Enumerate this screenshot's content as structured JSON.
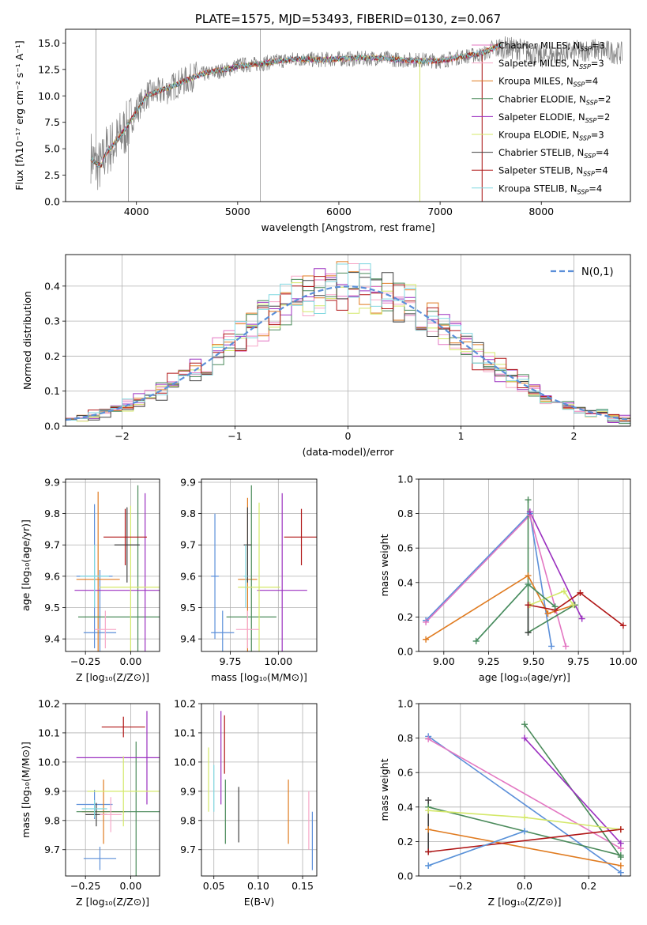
{
  "chart_data": [
    {
      "id": "spectrum",
      "type": "line",
      "title": "PLATE=1575, MJD=53493, FIBERID=0130, z=0.067",
      "xlabel": "wavelength [Angstrom, rest frame]",
      "ylabel": "Flux [fλ10⁻¹⁷ erg cm⁻² s⁻¹ A⁻¹]",
      "xlim": [
        3300,
        8880
      ],
      "ylim": [
        0,
        16.3
      ],
      "xticks": [
        4000,
        5000,
        6000,
        7000,
        8000
      ],
      "yticks": [
        0.0,
        2.5,
        5.0,
        7.5,
        10.0,
        12.5,
        15.0
      ],
      "grid": false,
      "legend": "right",
      "legend_entries": [
        {
          "label": "Chabrier MILES, N_SSP=3",
          "color": "#e377c2"
        },
        {
          "label": "Salpeter MILES, N_SSP=3",
          "color": "#f7a8c8"
        },
        {
          "label": "Kroupa MILES, N_SSP=4",
          "color": "#e07b20"
        },
        {
          "label": "Chabrier ELODIE, N_SSP=2",
          "color": "#4a8a5a"
        },
        {
          "label": "Salpeter ELODIE, N_SSP=2",
          "color": "#9b30c0"
        },
        {
          "label": "Kroupa ELODIE, N_SSP=3",
          "color": "#d4e86a"
        },
        {
          "label": "Chabrier STELIB, N_SSP=4",
          "color": "#404040"
        },
        {
          "label": "Salpeter STELIB, N_SSP=4",
          "color": "#b01515"
        },
        {
          "label": "Kroupa STELIB, N_SSP=4",
          "color": "#80d8e0"
        }
      ],
      "data_series": {
        "name": "data",
        "color": "#808080",
        "wavelength": [
          3550,
          3600,
          3650,
          3700,
          3800,
          3900,
          4000,
          4100,
          4200,
          4300,
          4400,
          4500,
          4600,
          4700,
          4800,
          4900,
          5000,
          5200,
          5400,
          5600,
          5800,
          6000,
          6200,
          6400,
          6600,
          6800,
          7000,
          7200,
          7400,
          7600,
          7800,
          8000,
          8200,
          8500,
          8800
        ],
        "flux": [
          4.3,
          3.5,
          3.3,
          4.8,
          5.6,
          6.9,
          8.6,
          10.1,
          10.3,
          10.5,
          11.1,
          11.5,
          12.0,
          12.1,
          12.3,
          12.5,
          12.9,
          13.0,
          13.3,
          13.5,
          13.4,
          13.5,
          13.5,
          13.6,
          13.4,
          13.4,
          13.3,
          13.7,
          13.9,
          14.6,
          14.4,
          13.7,
          14.0,
          14.4,
          14.0
        ]
      },
      "model_series": {
        "wavelength": [
          3550,
          3600,
          3650,
          3700,
          3800,
          3900,
          4000,
          4100,
          4200,
          4300,
          4400,
          4500,
          4600,
          4700,
          4800,
          4900,
          5000,
          5200,
          5400,
          5600,
          5800,
          6000,
          6200,
          6400,
          6600,
          6800,
          7000,
          7200,
          7400,
          7600
        ],
        "flux": [
          4.1,
          3.6,
          3.4,
          4.6,
          5.7,
          7.0,
          8.5,
          10.0,
          10.4,
          10.7,
          11.1,
          11.5,
          11.9,
          12.2,
          12.4,
          12.5,
          12.8,
          13.0,
          13.3,
          13.5,
          13.4,
          13.5,
          13.6,
          13.6,
          13.4,
          13.3,
          13.3,
          13.7,
          14.0,
          14.8
        ]
      }
    },
    {
      "id": "residuals",
      "type": "histogram",
      "xlabel": "(data-model)/error",
      "ylabel": "Normed distribution",
      "xlim": [
        -2.5,
        2.5
      ],
      "ylim": [
        0,
        0.49
      ],
      "xticks": [
        -2,
        -1,
        0,
        1,
        2
      ],
      "yticks": [
        0.0,
        0.1,
        0.2,
        0.3,
        0.4
      ],
      "grid": true,
      "legend": "top-right",
      "reference_curve": {
        "label": "N(0,1)",
        "color": "#5b8fd9",
        "sigma": 1
      },
      "bin_width": 0.1,
      "series": [
        {
          "name": "Chabrier MILES",
          "color": "#e377c2",
          "offset": 0
        },
        {
          "name": "Salpeter MILES",
          "color": "#f7a8c8",
          "offset": 1
        },
        {
          "name": "Kroupa MILES",
          "color": "#e07b20",
          "offset": 2
        },
        {
          "name": "Chabrier ELODIE",
          "color": "#4a8a5a",
          "offset": 3
        },
        {
          "name": "Salpeter ELODIE",
          "color": "#9b30c0",
          "offset": 4
        },
        {
          "name": "Kroupa ELODIE",
          "color": "#d4e86a",
          "offset": 5
        },
        {
          "name": "Chabrier STELIB",
          "color": "#404040",
          "offset": 6
        },
        {
          "name": "Salpeter STELIB",
          "color": "#b01515",
          "offset": 7
        },
        {
          "name": "Kroupa STELIB",
          "color": "#80d8e0",
          "offset": 8
        }
      ]
    },
    {
      "id": "age-vs-Z",
      "type": "scatter",
      "xlabel": "Z [log₁₀(Z/Z⊙)]",
      "ylabel": "age  [log₁₀(age/yr)]",
      "xlim": [
        -0.36,
        0.16
      ],
      "ylim": [
        9.36,
        9.91
      ],
      "xticks": [
        -0.25,
        0.0
      ],
      "yticks": [
        9.4,
        9.5,
        9.6,
        9.7,
        9.8,
        9.9
      ],
      "grid": true,
      "points": [
        {
          "x": -0.2,
          "y": 9.6,
          "xerr": 0.1,
          "yerr": 0.23,
          "color": "#5b8fd9"
        },
        {
          "x": -0.17,
          "y": 9.42,
          "xerr": 0.09,
          "yerr": 0.2,
          "color": "#5b8fd9"
        },
        {
          "x": -0.18,
          "y": 9.59,
          "xerr": 0.12,
          "yerr": 0.28,
          "color": "#e07b20"
        },
        {
          "x": 0.04,
          "y": 9.47,
          "xerr": 0.33,
          "yerr": 0.42,
          "color": "#4a8a5a"
        },
        {
          "x": 0.08,
          "y": 9.555,
          "xerr": 0.39,
          "yerr": 0.31,
          "color": "#9b30c0"
        },
        {
          "x": 0.0,
          "y": 9.565,
          "xerr": 0.17,
          "yerr": 0.26,
          "color": "#d4e86a"
        },
        {
          "x": -0.02,
          "y": 9.7,
          "xerr": 0.07,
          "yerr": 0.12,
          "color": "#404040"
        },
        {
          "x": -0.03,
          "y": 9.725,
          "xerr": 0.12,
          "yerr": 0.09,
          "color": "#b01515"
        },
        {
          "x": -0.14,
          "y": 9.43,
          "xerr": 0.06,
          "yerr": 0.06,
          "color": "#f7a8c8"
        },
        {
          "x": -0.2,
          "y": 9.6,
          "xerr": 0.08,
          "yerr": 0.1,
          "color": "#80d8e0"
        }
      ]
    },
    {
      "id": "age-vs-mass",
      "type": "scatter",
      "xlabel": "mass [log₁₀(M/M⊙)]",
      "ylabel": "",
      "xlim": [
        9.6,
        10.2
      ],
      "ylim": [
        9.36,
        9.91
      ],
      "xticks": [
        9.75,
        10.0
      ],
      "yticks": [
        9.4,
        9.5,
        9.6,
        9.7,
        9.8,
        9.9
      ],
      "grid": true,
      "points": [
        {
          "x": 9.67,
          "y": 9.6,
          "xerr": 0.02,
          "yerr": 0.2,
          "color": "#5b8fd9"
        },
        {
          "x": 9.71,
          "y": 9.42,
          "xerr": 0.06,
          "yerr": 0.07,
          "color": "#5b8fd9"
        },
        {
          "x": 9.84,
          "y": 9.59,
          "xerr": 0.05,
          "yerr": 0.26,
          "color": "#e07b20"
        },
        {
          "x": 9.86,
          "y": 9.47,
          "xerr": 0.13,
          "yerr": 0.42,
          "color": "#4a8a5a"
        },
        {
          "x": 10.02,
          "y": 9.555,
          "xerr": 0.13,
          "yerr": 0.31,
          "color": "#9b30c0"
        },
        {
          "x": 9.9,
          "y": 9.565,
          "xerr": 0.11,
          "yerr": 0.27,
          "color": "#d4e86a"
        },
        {
          "x": 9.84,
          "y": 9.7,
          "xerr": 0.02,
          "yerr": 0.12,
          "color": "#404040"
        },
        {
          "x": 10.12,
          "y": 9.725,
          "xerr": 0.09,
          "yerr": 0.09,
          "color": "#b01515"
        },
        {
          "x": 9.84,
          "y": 9.43,
          "xerr": 0.06,
          "yerr": 0.06,
          "color": "#f7a8c8"
        },
        {
          "x": 9.83,
          "y": 9.6,
          "xerr": 0.01,
          "yerr": 0.1,
          "color": "#80d8e0"
        }
      ]
    },
    {
      "id": "mass-weight-vs-age",
      "type": "line",
      "xlabel": "age  [log₁₀(age/yr)]",
      "ylabel": "mass weight",
      "xlim": [
        8.86,
        10.04
      ],
      "ylim": [
        0.0,
        1.0
      ],
      "xticks": [
        9.0,
        9.25,
        9.5,
        9.75,
        10.0
      ],
      "yticks": [
        0.0,
        0.2,
        0.4,
        0.6,
        0.8,
        1.0
      ],
      "grid": true,
      "series": [
        {
          "color": "#5b8fd9",
          "x": [
            8.9,
            9.48,
            9.6
          ],
          "y": [
            0.18,
            0.8,
            0.03
          ]
        },
        {
          "color": "#e377c2",
          "x": [
            8.9,
            9.48,
            9.68
          ],
          "y": [
            0.17,
            0.79,
            0.03
          ]
        },
        {
          "color": "#e07b20",
          "x": [
            8.9,
            9.47,
            9.58,
            9.73
          ],
          "y": [
            0.07,
            0.44,
            0.22,
            0.27
          ]
        },
        {
          "color": "#4a8a5a",
          "x": [
            9.47,
            9.47,
            9.73
          ],
          "y": [
            0.88,
            0.11,
            0.27
          ]
        },
        {
          "color": "#9b30c0",
          "x": [
            9.48,
            9.77
          ],
          "y": [
            0.81,
            0.19
          ]
        },
        {
          "color": "#d4e86a",
          "x": [
            9.48,
            9.67,
            9.72
          ],
          "y": [
            0.27,
            0.35,
            0.27
          ]
        },
        {
          "color": "#404040",
          "x": [
            9.47,
            9.47
          ],
          "y": [
            0.11,
            0.27
          ]
        },
        {
          "color": "#b01515",
          "x": [
            9.47,
            9.62,
            9.76,
            10.0
          ],
          "y": [
            0.27,
            0.24,
            0.34,
            0.15
          ]
        },
        {
          "color": "#80d8e0",
          "x": [
            9.18,
            9.47,
            9.62
          ],
          "y": [
            0.06,
            0.39,
            0.26
          ]
        },
        {
          "color": "#4a8a5a",
          "x": [
            9.18,
            9.47,
            9.62
          ],
          "y": [
            0.06,
            0.39,
            0.26
          ]
        }
      ]
    },
    {
      "id": "mass-vs-Z",
      "type": "scatter",
      "xlabel": "Z [log₁₀(Z/Z⊙)]",
      "ylabel": "mass [log₁₀(M/M⊙)]",
      "xlim": [
        -0.36,
        0.16
      ],
      "ylim": [
        9.61,
        10.2
      ],
      "xticks": [
        -0.25,
        0.0
      ],
      "yticks": [
        9.7,
        9.8,
        9.9,
        10.0,
        10.1,
        10.2
      ],
      "grid": true,
      "points": [
        {
          "x": -0.2,
          "y": 9.855,
          "xerr": 0.1,
          "yerr": 0.05,
          "color": "#5b8fd9"
        },
        {
          "x": -0.17,
          "y": 9.67,
          "xerr": 0.09,
          "yerr": 0.04,
          "color": "#5b8fd9"
        },
        {
          "x": -0.15,
          "y": 9.83,
          "xerr": 0.12,
          "yerr": 0.11,
          "color": "#e07b20"
        },
        {
          "x": 0.03,
          "y": 9.83,
          "xerr": 0.33,
          "yerr": 0.24,
          "color": "#4a8a5a"
        },
        {
          "x": 0.09,
          "y": 10.015,
          "xerr": 0.39,
          "yerr": 0.16,
          "color": "#9b30c0"
        },
        {
          "x": -0.04,
          "y": 9.9,
          "xerr": 0.2,
          "yerr": 0.12,
          "color": "#d4e86a"
        },
        {
          "x": -0.19,
          "y": 9.82,
          "xerr": 0.06,
          "yerr": 0.04,
          "color": "#404040"
        },
        {
          "x": -0.04,
          "y": 10.12,
          "xerr": 0.12,
          "yerr": 0.035,
          "color": "#b01515"
        },
        {
          "x": -0.11,
          "y": 9.82,
          "xerr": 0.06,
          "yerr": 0.06,
          "color": "#f7a8c8"
        },
        {
          "x": -0.2,
          "y": 9.84,
          "xerr": 0.07,
          "yerr": 0.03,
          "color": "#80d8e0"
        }
      ]
    },
    {
      "id": "mass-vs-ebv",
      "type": "scatter",
      "xlabel": "E(B-V)",
      "ylabel": "",
      "xlim": [
        0.036,
        0.166
      ],
      "ylim": [
        9.61,
        10.2
      ],
      "xticks": [
        0.05,
        0.1,
        0.15
      ],
      "yticks": [
        9.7,
        9.8,
        9.9,
        10.0,
        10.1,
        10.2
      ],
      "grid": true,
      "points": [
        {
          "x": 0.161,
          "y": 9.73,
          "xerr": 0.0,
          "yerr": 0.1,
          "color": "#5b8fd9"
        },
        {
          "x": 0.134,
          "y": 9.83,
          "xerr": 0.0,
          "yerr": 0.11,
          "color": "#e07b20"
        },
        {
          "x": 0.063,
          "y": 9.83,
          "xerr": 0.0,
          "yerr": 0.11,
          "color": "#4a8a5a"
        },
        {
          "x": 0.058,
          "y": 10.015,
          "xerr": 0.0,
          "yerr": 0.16,
          "color": "#9b30c0"
        },
        {
          "x": 0.044,
          "y": 9.94,
          "xerr": 0.0,
          "yerr": 0.11,
          "color": "#d4e86a"
        },
        {
          "x": 0.078,
          "y": 9.82,
          "xerr": 0.0,
          "yerr": 0.095,
          "color": "#404040"
        },
        {
          "x": 0.062,
          "y": 10.06,
          "xerr": 0.0,
          "yerr": 0.1,
          "color": "#b01515"
        },
        {
          "x": 0.157,
          "y": 9.8,
          "xerr": 0.0,
          "yerr": 0.1,
          "color": "#f7a8c8"
        },
        {
          "x": 0.05,
          "y": 9.91,
          "xerr": 0.0,
          "yerr": 0.08,
          "color": "#80d8e0"
        }
      ]
    },
    {
      "id": "mass-weight-vs-Z",
      "type": "line",
      "xlabel": "Z [log₁₀(Z/Z⊙)]",
      "ylabel": "mass weight",
      "xlim": [
        -0.33,
        0.33
      ],
      "ylim": [
        0.0,
        1.0
      ],
      "xticks": [
        -0.2,
        0.0,
        0.2
      ],
      "yticks": [
        0.0,
        0.2,
        0.4,
        0.6,
        0.8,
        1.0
      ],
      "grid": true,
      "series": [
        {
          "color": "#5b8fd9",
          "x": [
            -0.3,
            0.3
          ],
          "y": [
            0.81,
            0.02
          ]
        },
        {
          "color": "#e377c2",
          "x": [
            -0.3,
            0.3
          ],
          "y": [
            0.795,
            0.16
          ]
        },
        {
          "color": "#e07b20",
          "x": [
            -0.3,
            0.3
          ],
          "y": [
            0.27,
            0.06
          ]
        },
        {
          "color": "#4a8a5a",
          "x": [
            -0.3,
            0.3
          ],
          "y": [
            0.4,
            0.12
          ]
        },
        {
          "color": "#4a8a5a",
          "x": [
            0.0,
            0.3
          ],
          "y": [
            0.88,
            0.11
          ]
        },
        {
          "color": "#9b30c0",
          "x": [
            0.0,
            0.3
          ],
          "y": [
            0.8,
            0.19
          ]
        },
        {
          "color": "#d4e86a",
          "x": [
            -0.3,
            0.0,
            0.3
          ],
          "y": [
            0.38,
            0.34,
            0.27
          ]
        },
        {
          "color": "#404040",
          "x": [
            -0.3,
            -0.3
          ],
          "y": [
            0.14,
            0.44
          ]
        },
        {
          "color": "#b01515",
          "x": [
            -0.3,
            0.3
          ],
          "y": [
            0.14,
            0.27
          ]
        },
        {
          "color": "#80d8e0",
          "x": [
            -0.3,
            0.0
          ],
          "y": [
            0.06,
            0.26
          ]
        },
        {
          "color": "#5b8fd9",
          "x": [
            -0.3,
            0.0
          ],
          "y": [
            0.06,
            0.26
          ]
        }
      ]
    }
  ]
}
